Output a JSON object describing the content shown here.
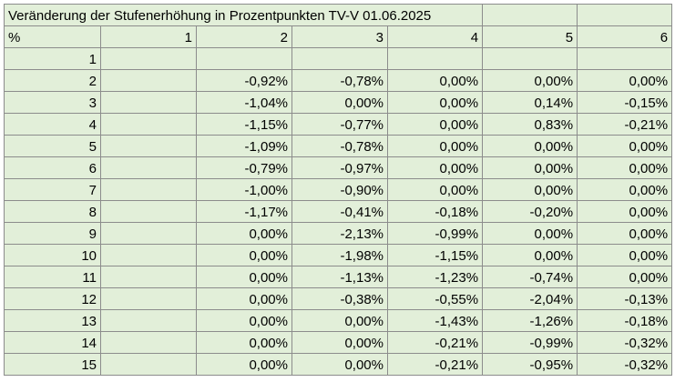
{
  "title": "Veränderung der Stufenerhöhung in Prozentpunkten TV-V 01.06.2025",
  "header": {
    "corner": "%",
    "columns": [
      "1",
      "2",
      "3",
      "4",
      "5",
      "6"
    ]
  },
  "rows": [
    {
      "label": "1",
      "values": [
        "",
        "",
        "",
        "",
        "",
        ""
      ]
    },
    {
      "label": "2",
      "values": [
        "",
        "-0,92%",
        "-0,78%",
        "0,00%",
        "0,00%",
        "0,00%"
      ]
    },
    {
      "label": "3",
      "values": [
        "",
        "-1,04%",
        "0,00%",
        "0,00%",
        "0,14%",
        "-0,15%"
      ]
    },
    {
      "label": "4",
      "values": [
        "",
        "-1,15%",
        "-0,77%",
        "0,00%",
        "0,83%",
        "-0,21%"
      ]
    },
    {
      "label": "5",
      "values": [
        "",
        "-1,09%",
        "-0,78%",
        "0,00%",
        "0,00%",
        "0,00%"
      ]
    },
    {
      "label": "6",
      "values": [
        "",
        "-0,79%",
        "-0,97%",
        "0,00%",
        "0,00%",
        "0,00%"
      ]
    },
    {
      "label": "7",
      "values": [
        "",
        "-1,00%",
        "-0,90%",
        "0,00%",
        "0,00%",
        "0,00%"
      ]
    },
    {
      "label": "8",
      "values": [
        "",
        "-1,17%",
        "-0,41%",
        "-0,18%",
        "-0,20%",
        "0,00%"
      ]
    },
    {
      "label": "9",
      "values": [
        "",
        "0,00%",
        "-2,13%",
        "-0,99%",
        "0,00%",
        "0,00%"
      ]
    },
    {
      "label": "10",
      "values": [
        "",
        "0,00%",
        "-1,98%",
        "-1,15%",
        "0,00%",
        "0,00%"
      ]
    },
    {
      "label": "11",
      "values": [
        "",
        "0,00%",
        "-1,13%",
        "-1,23%",
        "-0,74%",
        "0,00%"
      ]
    },
    {
      "label": "12",
      "values": [
        "",
        "0,00%",
        "-0,38%",
        "-0,55%",
        "-2,04%",
        "-0,13%"
      ]
    },
    {
      "label": "13",
      "values": [
        "",
        "0,00%",
        "0,00%",
        "-1,43%",
        "-1,26%",
        "-0,18%"
      ]
    },
    {
      "label": "14",
      "values": [
        "",
        "0,00%",
        "0,00%",
        "-0,21%",
        "-0,99%",
        "-0,32%"
      ]
    },
    {
      "label": "15",
      "values": [
        "",
        "0,00%",
        "0,00%",
        "-0,21%",
        "-0,95%",
        "-0,32%"
      ]
    }
  ]
}
